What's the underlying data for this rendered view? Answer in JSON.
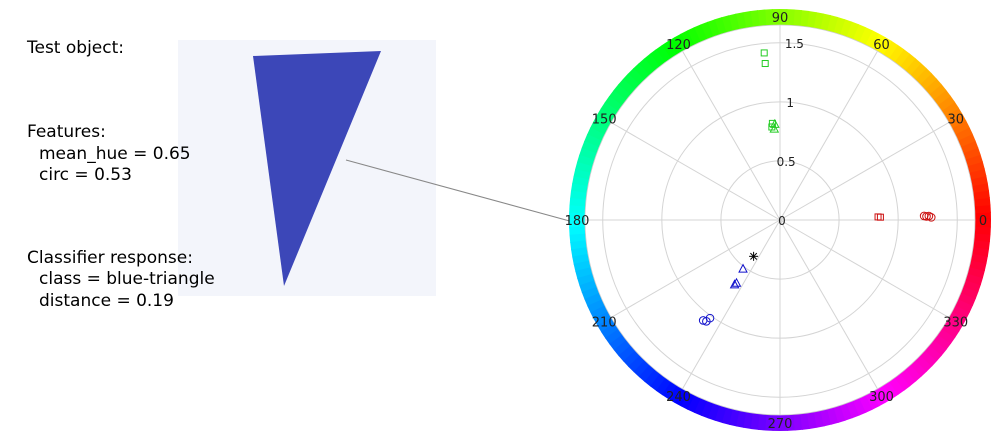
{
  "panel": {
    "test_object_heading": "Test object:",
    "features_heading": "Features:",
    "features": [
      "mean_hue = 0.65",
      "circ = 0.53"
    ],
    "classifier_heading": "Classifier response:",
    "classifier": [
      "class = blue-triangle",
      "distance = 0.19"
    ]
  },
  "sample_image": {
    "fill": "#3c47b8",
    "background": "#f3f5fb"
  },
  "chart_data": {
    "type": "scatter",
    "projection": "polar",
    "angle_unit": "degrees",
    "radial_ticks": [
      0,
      0.5,
      1,
      1.5
    ],
    "radial_tick_labels": [
      "0",
      "0.5",
      "1",
      "1.5"
    ],
    "rmax": 1.65,
    "angle_ticks": [
      0,
      30,
      60,
      90,
      120,
      150,
      180,
      210,
      240,
      270,
      300,
      330
    ],
    "angle_tick_labels": [
      "0",
      "30",
      "60",
      "90",
      "120",
      "150",
      "180",
      "210",
      "240",
      "270",
      "300",
      "330"
    ],
    "hue_wheel": true,
    "grid": true,
    "series": [
      {
        "marker": "square",
        "color": "#22cc22",
        "points": [
          [
            95.4,
            1.42
          ],
          [
            95.4,
            1.33
          ],
          [
            94.5,
            0.82
          ],
          [
            95.0,
            0.79
          ]
        ]
      },
      {
        "marker": "triangle",
        "color": "#22cc22",
        "points": [
          [
            93.1,
            0.81
          ],
          [
            93.6,
            0.77
          ]
        ]
      },
      {
        "marker": "square",
        "color": "#cc1111",
        "points": [
          [
            1.8,
            0.83
          ],
          [
            1.6,
            0.85
          ]
        ]
      },
      {
        "marker": "circle",
        "color": "#cc1111",
        "points": [
          [
            1.6,
            1.22
          ],
          [
            1.5,
            1.26
          ],
          [
            1.0,
            1.28
          ],
          [
            1.4,
            1.24
          ]
        ]
      },
      {
        "marker": "triangle",
        "color": "#1111cc",
        "points": [
          [
            233.0,
            0.52
          ],
          [
            235.5,
            0.65
          ],
          [
            235.0,
            0.67
          ]
        ]
      },
      {
        "marker": "circle",
        "color": "#1111cc",
        "points": [
          [
            234.5,
            1.02
          ],
          [
            234.0,
            1.06
          ],
          [
            232.6,
            1.07
          ]
        ]
      },
      {
        "marker": "star",
        "color": "#000000",
        "points": [
          [
            234.0,
            0.38
          ]
        ]
      }
    ]
  }
}
